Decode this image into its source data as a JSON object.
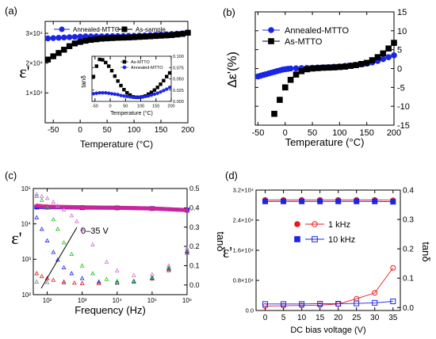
{
  "colors": {
    "blue": "#1a25e6",
    "black": "#000000",
    "red": "#e51b1b",
    "pink": "#e0208e",
    "green": "#21c321",
    "violet": "#d070e0",
    "grey": "#888888"
  },
  "chart_data": [
    {
      "label": "(a)",
      "type": "scatter",
      "xlabel": "Temperature (°C)",
      "ylabel": "ε'",
      "xlim": [
        -65,
        200
      ],
      "ylim": [
        0,
        34000
      ],
      "xticks": [
        -50,
        0,
        50,
        100,
        150,
        200
      ],
      "yticks": [
        {
          "v": 10000,
          "t": "1×10⁴"
        },
        {
          "v": 20000,
          "t": "2×10⁴"
        },
        {
          "v": 30000,
          "t": "3×10⁴"
        }
      ],
      "legend": "top-right",
      "series": [
        {
          "name": "Annealed-MTTO",
          "marker": "circle",
          "color": "#1a25e6",
          "x": [
            -60,
            -50,
            -40,
            -30,
            -20,
            -10,
            0,
            10,
            20,
            30,
            40,
            50,
            60,
            70,
            80,
            90,
            100,
            110,
            120,
            130,
            140,
            150,
            160,
            170,
            180,
            190,
            200
          ],
          "y": [
            28300,
            28400,
            28500,
            28600,
            28700,
            28800,
            28900,
            29000,
            29000,
            29000,
            29000,
            29050,
            29050,
            29100,
            29100,
            29150,
            29200,
            29250,
            29300,
            29400,
            29500,
            29600,
            29700,
            29800,
            29900,
            30000,
            30100
          ]
        },
        {
          "name": "As-sample",
          "marker": "square",
          "color": "#000000",
          "x": [
            -60,
            -50,
            -40,
            -30,
            -20,
            -10,
            0,
            10,
            20,
            30,
            40,
            50,
            60,
            70,
            80,
            90,
            100,
            110,
            120,
            130,
            140,
            150,
            160,
            170,
            180,
            190,
            200
          ],
          "y": [
            21200,
            22300,
            23400,
            24500,
            25700,
            26600,
            27100,
            27500,
            27800,
            28000,
            28200,
            28300,
            28400,
            28500,
            28550,
            28600,
            28700,
            28800,
            28900,
            29000,
            29100,
            29200,
            29300,
            29400,
            29600,
            29800,
            30200
          ]
        }
      ],
      "inset": {
        "ylabel": "tanδ",
        "xlabel": "Temperature (°C)",
        "xlim": [
          -60,
          200
        ],
        "ylim": [
          0,
          0.1
        ],
        "xticks": [
          -50,
          0,
          50,
          100,
          150,
          200
        ],
        "yticks": [
          0.0,
          0.025,
          0.05,
          0.075,
          0.1
        ],
        "yticklabels": [
          "0.000",
          "0.025",
          "0.050",
          "0.075",
          "0.100"
        ],
        "series": [
          {
            "name": "As-MTTO",
            "marker": "square",
            "color": "#000000",
            "x": [
              -55,
              -45,
              -35,
              -25,
              -15,
              -5,
              5,
              15,
              25,
              35,
              45,
              55,
              65,
              75,
              85,
              95,
              105,
              115,
              125,
              135,
              145,
              155,
              165,
              175,
              185,
              195
            ],
            "y": [
              0.055,
              0.078,
              0.093,
              0.092,
              0.086,
              0.078,
              0.068,
              0.056,
              0.045,
              0.035,
              0.026,
              0.019,
              0.014,
              0.01,
              0.009,
              0.009,
              0.01,
              0.012,
              0.016,
              0.02,
              0.025,
              0.031,
              0.038,
              0.046,
              0.055,
              0.063
            ]
          },
          {
            "name": "Annealed-MTTO",
            "marker": "circle",
            "color": "#1a25e6",
            "x": [
              -55,
              -45,
              -35,
              -25,
              -15,
              -5,
              5,
              15,
              25,
              35,
              45,
              55,
              65,
              75,
              85,
              95,
              105,
              115,
              125,
              135,
              145,
              155,
              165,
              175,
              185,
              195
            ],
            "y": [
              0.017,
              0.018,
              0.019,
              0.019,
              0.019,
              0.018,
              0.017,
              0.016,
              0.015,
              0.013,
              0.012,
              0.011,
              0.01,
              0.009,
              0.009,
              0.009,
              0.01,
              0.011,
              0.012,
              0.014,
              0.016,
              0.018,
              0.021,
              0.024,
              0.027,
              0.031
            ]
          }
        ]
      }
    },
    {
      "label": "(b)",
      "type": "scatter",
      "xlabel": "Temperature (°C)",
      "ylabel": "Δε'(%)",
      "xlim": [
        -55,
        200
      ],
      "ylim": [
        -15,
        15
      ],
      "xticks": [
        -50,
        0,
        50,
        100,
        150,
        200
      ],
      "yticks": [
        -15,
        -10,
        -5,
        0,
        5,
        10,
        15
      ],
      "legend": "top-left",
      "series": [
        {
          "name": "Annealed-MTTO",
          "marker": "circle",
          "color": "#1a25e6",
          "x": [
            -50,
            -45,
            -40,
            -35,
            -30,
            -25,
            -20,
            -15,
            -10,
            -5,
            0,
            5,
            10,
            20,
            30,
            40,
            50,
            60,
            70,
            80,
            90,
            100,
            110,
            120,
            130,
            140,
            150,
            160,
            170,
            180,
            190,
            200
          ],
          "y": [
            -2.1,
            -1.9,
            -1.7,
            -1.5,
            -1.3,
            -1.1,
            -0.9,
            -0.7,
            -0.5,
            -0.3,
            -0.2,
            -0.1,
            0,
            0.05,
            0.1,
            0.15,
            0.2,
            0.25,
            0.3,
            0.35,
            0.45,
            0.55,
            0.7,
            0.8,
            0.95,
            1.1,
            1.3,
            1.6,
            2.0,
            2.5,
            3.0,
            3.5
          ]
        },
        {
          "name": "As-MTTO",
          "marker": "square",
          "color": "#000000",
          "x": [
            -20,
            -10,
            0,
            10,
            20,
            30,
            40,
            50,
            60,
            70,
            80,
            90,
            100,
            110,
            120,
            130,
            140,
            150,
            160,
            170,
            180,
            190,
            200
          ],
          "y": [
            -12.0,
            -8.3,
            -5.0,
            -3.0,
            -1.6,
            -0.7,
            -0.2,
            0,
            0.1,
            0.2,
            0.25,
            0.3,
            0.4,
            0.5,
            0.7,
            0.9,
            1.2,
            1.5,
            2.2,
            3.0,
            4.0,
            5.3,
            6.8
          ]
        }
      ]
    },
    {
      "label": "(c)",
      "type": "scatter",
      "xlabel": "Frequency (Hz)",
      "ylabel": "ε'",
      "y2label": "tanδ",
      "xscale": "log",
      "xlim": [
        40,
        1000000
      ],
      "yscale": "log",
      "ylim": [
        100,
        100000
      ],
      "y2lim": [
        -0.05,
        0.5
      ],
      "xticks": [
        {
          "v": 100,
          "t": "10²"
        },
        {
          "v": 1000,
          "t": "10³"
        },
        {
          "v": 10000,
          "t": "10⁴"
        },
        {
          "v": 100000,
          "t": "10⁵"
        },
        {
          "v": 1000000,
          "t": "10⁶"
        }
      ],
      "yticks": [
        {
          "v": 100,
          "t": "10²"
        },
        {
          "v": 1000,
          "t": "10³"
        },
        {
          "v": 10000,
          "t": "10⁴"
        },
        {
          "v": 100000,
          "t": "10⁵"
        }
      ],
      "y2ticks": [
        0.0,
        0.1,
        0.2,
        0.3,
        0.4,
        0.5
      ],
      "y2ticklabels": [
        "0.0",
        "0.1",
        "0.2",
        "0.3",
        "0.4",
        "0.5"
      ],
      "annotation": "0–35 V",
      "series": [
        {
          "axis": "y",
          "marker": "square",
          "color": "#1a25e6",
          "x": [
            50,
            100,
            1000,
            10000,
            100000,
            1000000
          ],
          "y": [
            30000,
            29500,
            28800,
            28400,
            27200,
            24500
          ]
        },
        {
          "axis": "y",
          "marker": "triangle",
          "color": "#e0208e",
          "x": [
            50,
            100,
            1000,
            10000,
            100000,
            1000000
          ],
          "y": [
            33000,
            31000,
            29500,
            28600,
            27300,
            24600
          ]
        },
        {
          "axis": "y2",
          "marker": "triangle",
          "color": "#888888",
          "x": [
            50,
            100,
            300,
            1000,
            3000,
            10000,
            30000,
            100000,
            300000,
            1000000
          ],
          "y": [
            0.017,
            0.014,
            0.011,
            0.009,
            0.009,
            0.011,
            0.017,
            0.032,
            0.075,
            0.165
          ]
        },
        {
          "axis": "y2",
          "marker": "triangle",
          "color": "#e51b1b",
          "x": [
            50,
            70,
            100,
            150,
            300,
            600,
            1000,
            3000,
            10000,
            30000,
            100000,
            300000,
            1000000
          ],
          "y": [
            0.06,
            0.045,
            0.035,
            0.026,
            0.017,
            0.011,
            0.009,
            0.009,
            0.011,
            0.018,
            0.034,
            0.08,
            0.17
          ]
        },
        {
          "axis": "y2",
          "marker": "triangle",
          "color": "#1a25e6",
          "x": [
            50,
            70,
            100,
            150,
            200,
            300,
            500,
            1000,
            3000,
            10000,
            30000,
            100000,
            300000,
            1000000
          ],
          "y": [
            0.35,
            0.29,
            0.23,
            0.17,
            0.13,
            0.09,
            0.06,
            0.035,
            0.017,
            0.012,
            0.018,
            0.036,
            0.085,
            0.175
          ]
        },
        {
          "axis": "y2",
          "marker": "triangle",
          "color": "#21c321",
          "x": [
            50,
            70,
            100,
            150,
            200,
            300,
            500,
            1000,
            2000,
            5000,
            10000,
            30000,
            100000,
            300000,
            1000000
          ],
          "y": [
            0.46,
            0.44,
            0.4,
            0.34,
            0.29,
            0.22,
            0.16,
            0.1,
            0.06,
            0.03,
            0.02,
            0.022,
            0.04,
            0.09,
            0.18
          ]
        },
        {
          "axis": "y2",
          "marker": "triangle",
          "color": "#d070e0",
          "x": [
            50,
            70,
            100,
            150,
            200,
            300,
            500,
            700,
            1000,
            2000,
            5000,
            10000,
            30000,
            100000,
            300000,
            1000000
          ],
          "y": [
            0.47,
            0.46,
            0.45,
            0.43,
            0.41,
            0.39,
            0.36,
            0.33,
            0.29,
            0.21,
            0.12,
            0.075,
            0.05,
            0.055,
            0.1,
            0.19
          ]
        }
      ]
    },
    {
      "label": "(d)",
      "type": "line",
      "xlabel": "DC bias voltage (V)",
      "ylabel": "ε'",
      "y2label": "tanδ",
      "xlim": [
        -2.5,
        37
      ],
      "ylim": [
        0,
        32000
      ],
      "y2lim": [
        -0.01,
        0.4
      ],
      "xticks": [
        0,
        5,
        10,
        15,
        20,
        25,
        30,
        35
      ],
      "yticks": [
        {
          "v": 0,
          "t": "0.0"
        },
        {
          "v": 8000,
          "t": "0.8×10⁴"
        },
        {
          "v": 16000,
          "t": "1.6×10⁴"
        },
        {
          "v": 24000,
          "t": "2.4×10⁴"
        },
        {
          "v": 32000,
          "t": "3.2×10⁴"
        }
      ],
      "y2ticks": [
        0.0,
        0.1,
        0.2,
        0.3,
        0.4
      ],
      "y2ticklabels": [
        "0.0",
        "0.1",
        "0.2",
        "0.3",
        "0.4"
      ],
      "legend": "center",
      "x": [
        0,
        5,
        10,
        15,
        20,
        25,
        30,
        35
      ],
      "series": [
        {
          "name": "1 kHz",
          "axis": "y",
          "marker": "circle",
          "filled": true,
          "color": "#e51b1b",
          "y": [
            29400,
            29400,
            29400,
            29400,
            29400,
            29400,
            29400,
            29300
          ]
        },
        {
          "name": "1 kHz",
          "axis": "y2",
          "marker": "circle",
          "filled": false,
          "color": "#e51b1b",
          "y": [
            0.005,
            0.006,
            0.007,
            0.008,
            0.012,
            0.03,
            0.05,
            0.135
          ]
        },
        {
          "name": "10 kHz",
          "axis": "y",
          "marker": "square",
          "filled": true,
          "color": "#1a25e6",
          "y": [
            29000,
            29000,
            29000,
            29000,
            29000,
            29000,
            29000,
            28900
          ]
        },
        {
          "name": "10 kHz",
          "axis": "y2",
          "marker": "square",
          "filled": false,
          "color": "#1a25e6",
          "y": [
            0.012,
            0.012,
            0.012,
            0.013,
            0.013,
            0.014,
            0.016,
            0.021
          ]
        }
      ]
    }
  ]
}
